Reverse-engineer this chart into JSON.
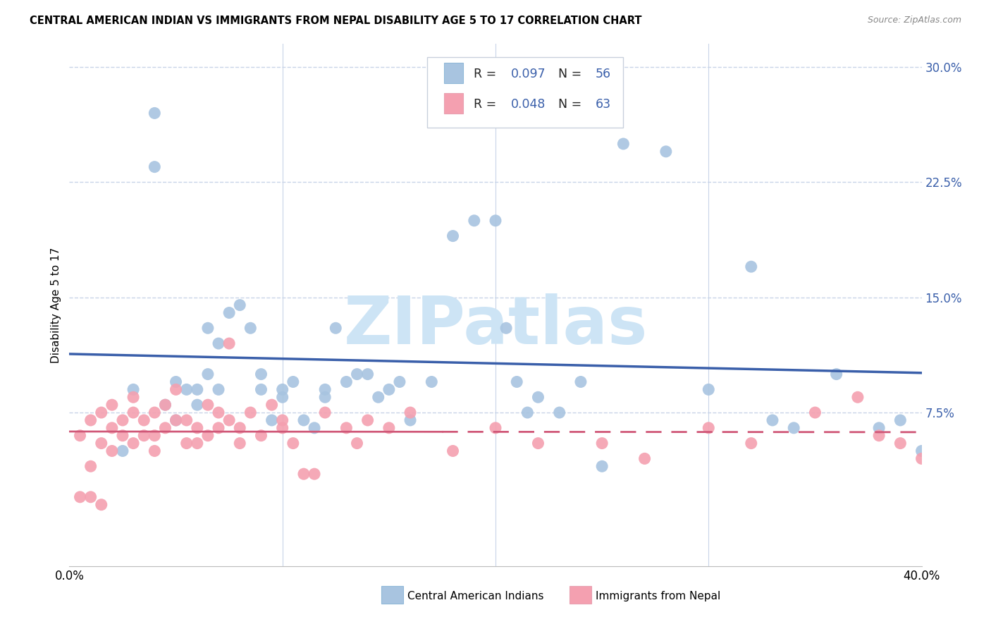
{
  "title": "CENTRAL AMERICAN INDIAN VS IMMIGRANTS FROM NEPAL DISABILITY AGE 5 TO 17 CORRELATION CHART",
  "source": "Source: ZipAtlas.com",
  "ylabel": "Disability Age 5 to 17",
  "ytick_labels": [
    "",
    "7.5%",
    "15.0%",
    "22.5%",
    "30.0%"
  ],
  "yticks": [
    0.0,
    0.075,
    0.15,
    0.225,
    0.3
  ],
  "xlim": [
    0.0,
    0.4
  ],
  "ylim": [
    -0.025,
    0.315
  ],
  "label1": "Central American Indians",
  "label2": "Immigrants from Nepal",
  "color_blue": "#a8c4e0",
  "color_pink": "#f4a0b0",
  "line_blue": "#3a5faa",
  "line_pink": "#d05878",
  "watermark": "ZIPatlas",
  "watermark_color": "#cde4f5",
  "grid_color": "#c8d4e8",
  "background_color": "#ffffff",
  "blue_dots_x": [
    0.025,
    0.03,
    0.04,
    0.045,
    0.05,
    0.05,
    0.055,
    0.06,
    0.06,
    0.065,
    0.065,
    0.07,
    0.07,
    0.075,
    0.08,
    0.085,
    0.09,
    0.09,
    0.095,
    0.1,
    0.1,
    0.105,
    0.11,
    0.115,
    0.12,
    0.12,
    0.125,
    0.13,
    0.135,
    0.14,
    0.145,
    0.15,
    0.155,
    0.16,
    0.17,
    0.18,
    0.19,
    0.2,
    0.205,
    0.21,
    0.215,
    0.22,
    0.23,
    0.24,
    0.25,
    0.26,
    0.28,
    0.3,
    0.32,
    0.33,
    0.34,
    0.36,
    0.38,
    0.39,
    0.4,
    0.04
  ],
  "blue_dots_y": [
    0.05,
    0.09,
    0.27,
    0.08,
    0.095,
    0.07,
    0.09,
    0.08,
    0.09,
    0.1,
    0.13,
    0.09,
    0.12,
    0.14,
    0.145,
    0.13,
    0.09,
    0.1,
    0.07,
    0.085,
    0.09,
    0.095,
    0.07,
    0.065,
    0.09,
    0.085,
    0.13,
    0.095,
    0.1,
    0.1,
    0.085,
    0.09,
    0.095,
    0.07,
    0.095,
    0.19,
    0.2,
    0.2,
    0.13,
    0.095,
    0.075,
    0.085,
    0.075,
    0.095,
    0.04,
    0.25,
    0.245,
    0.09,
    0.17,
    0.07,
    0.065,
    0.1,
    0.065,
    0.07,
    0.05,
    0.235
  ],
  "pink_dots_x": [
    0.005,
    0.01,
    0.01,
    0.015,
    0.015,
    0.02,
    0.02,
    0.02,
    0.025,
    0.025,
    0.03,
    0.03,
    0.03,
    0.035,
    0.035,
    0.04,
    0.04,
    0.04,
    0.045,
    0.045,
    0.05,
    0.05,
    0.055,
    0.055,
    0.06,
    0.06,
    0.065,
    0.065,
    0.07,
    0.07,
    0.075,
    0.075,
    0.08,
    0.08,
    0.085,
    0.09,
    0.095,
    0.1,
    0.1,
    0.105,
    0.11,
    0.115,
    0.12,
    0.13,
    0.135,
    0.14,
    0.15,
    0.16,
    0.18,
    0.2,
    0.22,
    0.25,
    0.27,
    0.3,
    0.32,
    0.35,
    0.37,
    0.38,
    0.39,
    0.4,
    0.005,
    0.01,
    0.015
  ],
  "pink_dots_y": [
    0.06,
    0.04,
    0.07,
    0.055,
    0.075,
    0.065,
    0.08,
    0.05,
    0.07,
    0.06,
    0.075,
    0.085,
    0.055,
    0.07,
    0.06,
    0.075,
    0.05,
    0.06,
    0.08,
    0.065,
    0.07,
    0.09,
    0.055,
    0.07,
    0.065,
    0.055,
    0.08,
    0.06,
    0.075,
    0.065,
    0.12,
    0.07,
    0.065,
    0.055,
    0.075,
    0.06,
    0.08,
    0.07,
    0.065,
    0.055,
    0.035,
    0.035,
    0.075,
    0.065,
    0.055,
    0.07,
    0.065,
    0.075,
    0.05,
    0.065,
    0.055,
    0.055,
    0.045,
    0.065,
    0.055,
    0.075,
    0.085,
    0.06,
    0.055,
    0.045,
    0.02,
    0.02,
    0.015
  ]
}
